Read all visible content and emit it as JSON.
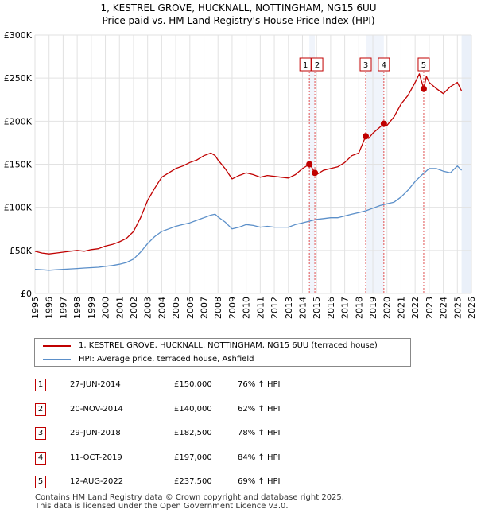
{
  "header": {
    "title_line1": "1, KESTREL GROVE, HUCKNALL, NOTTINGHAM, NG15 6UU",
    "title_line2": "Price paid vs. HM Land Registry's House Price Index (HPI)"
  },
  "colors": {
    "property": "#c00000",
    "hpi": "#5b8fc9",
    "grid": "#e2e2e2",
    "shade": "#eaf0f9",
    "marker_line": "#e05050"
  },
  "chart_data": {
    "type": "line",
    "title": "1, KESTREL GROVE, HUCKNALL, NOTTINGHAM, NG15 6UU",
    "subtitle": "Price paid vs. HM Land Registry's House Price Index (HPI)",
    "xlabel": "",
    "ylabel": "",
    "xlim": [
      1995,
      2026
    ],
    "ylim": [
      0,
      300000
    ],
    "y_ticks": [
      {
        "value": 0,
        "label": "£0"
      },
      {
        "value": 50000,
        "label": "£50K"
      },
      {
        "value": 100000,
        "label": "£100K"
      },
      {
        "value": 150000,
        "label": "£150K"
      },
      {
        "value": 200000,
        "label": "£200K"
      },
      {
        "value": 250000,
        "label": "£250K"
      },
      {
        "value": 300000,
        "label": "£300K"
      }
    ],
    "x_ticks": [
      "1995",
      "1996",
      "1997",
      "1998",
      "1999",
      "2000",
      "2001",
      "2002",
      "2003",
      "2004",
      "2005",
      "2006",
      "2007",
      "2008",
      "2009",
      "2010",
      "2011",
      "2012",
      "2013",
      "2014",
      "2015",
      "2016",
      "2017",
      "2018",
      "2019",
      "2020",
      "2021",
      "2022",
      "2023",
      "2024",
      "2025",
      "2026"
    ],
    "grid": true,
    "shaded_from": 2025.3,
    "series": [
      {
        "name": "1, KESTREL GROVE, HUCKNALL, NOTTINGHAM, NG15 6UU (terraced house)",
        "color": "#c00000",
        "x": [
          1995,
          1995.5,
          1996,
          1996.5,
          1997,
          1997.5,
          1998,
          1998.5,
          1999,
          1999.5,
          2000,
          2000.5,
          2001,
          2001.5,
          2002,
          2002.5,
          2003,
          2003.5,
          2004,
          2004.5,
          2005,
          2005.5,
          2006,
          2006.5,
          2007,
          2007.5,
          2007.8,
          2008,
          2008.5,
          2009,
          2009.5,
          2010,
          2010.5,
          2011,
          2011.5,
          2012,
          2012.5,
          2013,
          2013.5,
          2014,
          2014.49,
          2014.6,
          2014.88,
          2015,
          2015.5,
          2016,
          2016.5,
          2017,
          2017.5,
          2018,
          2018.49,
          2018.7,
          2019,
          2019.5,
          2019.78,
          2020,
          2020.5,
          2021,
          2021.5,
          2022,
          2022.3,
          2022.61,
          2022.8,
          2023,
          2023.5,
          2024,
          2024.5,
          2025,
          2025.3
        ],
        "y": [
          49000,
          47000,
          46000,
          47000,
          48000,
          49000,
          50000,
          49000,
          51000,
          52000,
          55000,
          57000,
          60000,
          64000,
          72000,
          88000,
          108000,
          122000,
          135000,
          140000,
          145000,
          148000,
          152000,
          155000,
          160000,
          163000,
          160000,
          155000,
          145000,
          133000,
          137000,
          140000,
          138000,
          135000,
          137000,
          136000,
          135000,
          134000,
          138000,
          145000,
          150000,
          148000,
          140000,
          138000,
          143000,
          145000,
          147000,
          152000,
          160000,
          163000,
          182500,
          180000,
          186000,
          193000,
          197000,
          195000,
          205000,
          220000,
          230000,
          245000,
          255000,
          237500,
          252000,
          245000,
          238000,
          232000,
          240000,
          245000,
          235000
        ]
      },
      {
        "name": "HPI: Average price, terraced house, Ashfield",
        "color": "#5b8fc9",
        "x": [
          1995,
          1995.5,
          1996,
          1996.5,
          1997,
          1997.5,
          1998,
          1998.5,
          1999,
          1999.5,
          2000,
          2000.5,
          2001,
          2001.5,
          2002,
          2002.5,
          2003,
          2003.5,
          2004,
          2004.5,
          2005,
          2005.5,
          2006,
          2006.5,
          2007,
          2007.5,
          2007.8,
          2008,
          2008.5,
          2009,
          2009.5,
          2010,
          2010.5,
          2011,
          2011.5,
          2012,
          2012.5,
          2013,
          2013.5,
          2014,
          2014.5,
          2015,
          2015.5,
          2016,
          2016.5,
          2017,
          2017.5,
          2018,
          2018.5,
          2019,
          2019.5,
          2020,
          2020.5,
          2021,
          2021.5,
          2022,
          2022.5,
          2023,
          2023.5,
          2024,
          2024.5,
          2025,
          2025.3
        ],
        "y": [
          28000,
          27500,
          27000,
          27500,
          28000,
          28500,
          29000,
          29500,
          30000,
          30500,
          31500,
          32500,
          34000,
          36000,
          40000,
          48000,
          58000,
          66000,
          72000,
          75000,
          78000,
          80000,
          82000,
          85000,
          88000,
          91000,
          92000,
          89000,
          83000,
          75000,
          77000,
          80000,
          79000,
          77000,
          78000,
          77000,
          77000,
          77000,
          80000,
          82000,
          84000,
          86000,
          87000,
          88000,
          88000,
          90000,
          92000,
          94000,
          96000,
          99000,
          102000,
          104000,
          106000,
          112000,
          120000,
          130000,
          138000,
          145000,
          145000,
          142000,
          140000,
          148000,
          143000
        ]
      }
    ],
    "sales": [
      {
        "id": "1",
        "x": 2014.49,
        "price": 150000,
        "date": "27-JUN-2014",
        "price_label": "£150,000",
        "hpi": "76% ↑ HPI"
      },
      {
        "id": "2",
        "x": 2014.88,
        "price": 140000,
        "date": "20-NOV-2014",
        "price_label": "£140,000",
        "hpi": "62% ↑ HPI"
      },
      {
        "id": "3",
        "x": 2018.49,
        "price": 182500,
        "date": "29-JUN-2018",
        "price_label": "£182,500",
        "hpi": "78% ↑ HPI"
      },
      {
        "id": "4",
        "x": 2019.78,
        "price": 197000,
        "date": "11-OCT-2019",
        "price_label": "£197,000",
        "hpi": "84% ↑ HPI"
      },
      {
        "id": "5",
        "x": 2022.61,
        "price": 237500,
        "date": "12-AUG-2022",
        "price_label": "£237,500",
        "hpi": "69% ↑ HPI"
      }
    ]
  },
  "legend": {
    "property_label": "1, KESTREL GROVE, HUCKNALL, NOTTINGHAM, NG15 6UU (terraced house)",
    "hpi_label": "HPI: Average price, terraced house, Ashfield"
  },
  "footer": {
    "line1": "Contains HM Land Registry data © Crown copyright and database right 2025.",
    "line2": "This data is licensed under the Open Government Licence v3.0."
  }
}
